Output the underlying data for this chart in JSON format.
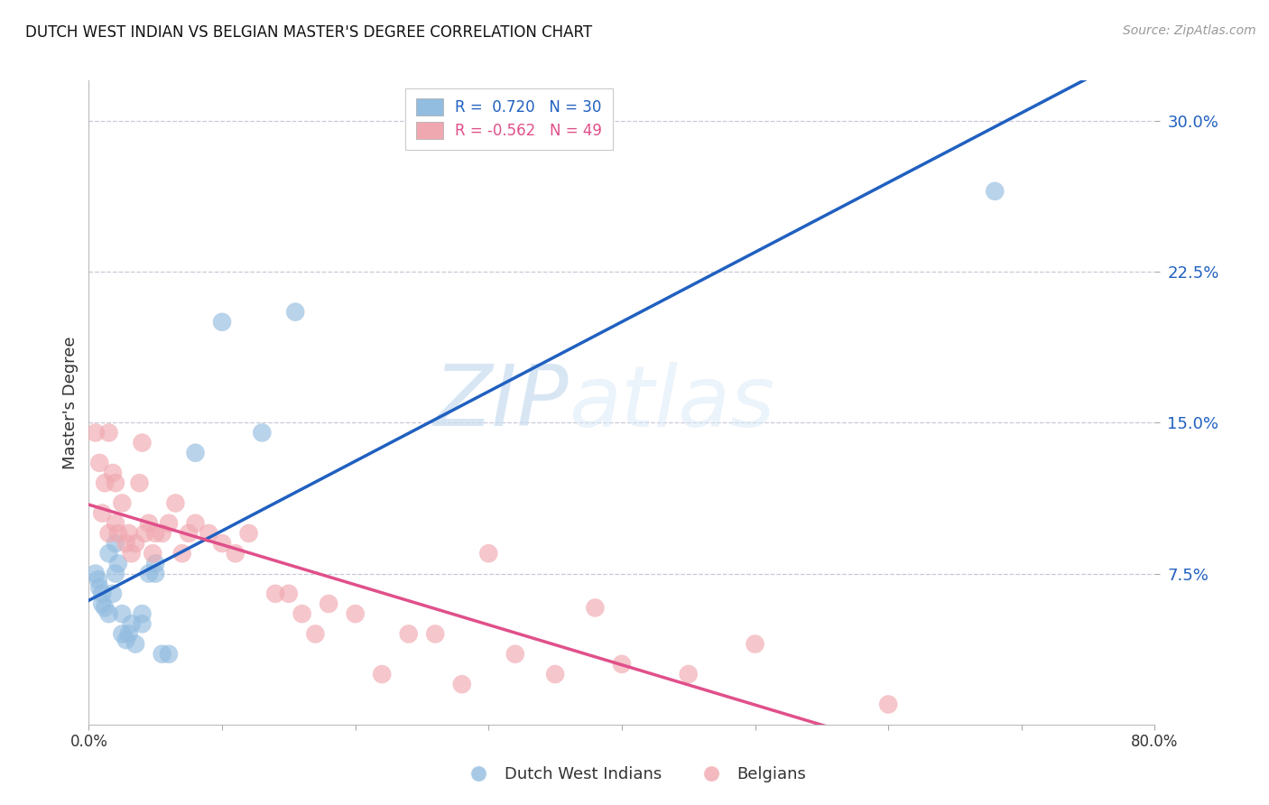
{
  "title": "DUTCH WEST INDIAN VS BELGIAN MASTER'S DEGREE CORRELATION CHART",
  "source": "Source: ZipAtlas.com",
  "ylabel": "Master's Degree",
  "xlim": [
    0.0,
    0.8
  ],
  "ylim": [
    0.0,
    0.32
  ],
  "ytick_vals": [
    0.075,
    0.15,
    0.225,
    0.3
  ],
  "ytick_labels": [
    "7.5%",
    "15.0%",
    "22.5%",
    "30.0%"
  ],
  "blue_color": "#92bce0",
  "pink_color": "#f0a8b0",
  "blue_line_color": "#2060c0",
  "pink_line_color": "#e0508a",
  "background_color": "#ffffff",
  "grid_color": "#c8c8d8",
  "legend_R_blue": "0.720",
  "legend_N_blue": "30",
  "legend_R_pink": "-0.562",
  "legend_N_pink": "49",
  "watermark_zip": "ZIP",
  "watermark_atlas": "atlas",
  "dutch_x": [
    0.005,
    0.007,
    0.008,
    0.01,
    0.01,
    0.012,
    0.015,
    0.015,
    0.018,
    0.02,
    0.02,
    0.022,
    0.025,
    0.025,
    0.028,
    0.03,
    0.032,
    0.035,
    0.04,
    0.04,
    0.045,
    0.05,
    0.05,
    0.055,
    0.06,
    0.08,
    0.1,
    0.13,
    0.155,
    0.68
  ],
  "dutch_y": [
    0.075,
    0.072,
    0.068,
    0.065,
    0.06,
    0.058,
    0.055,
    0.085,
    0.065,
    0.075,
    0.09,
    0.08,
    0.055,
    0.045,
    0.042,
    0.045,
    0.05,
    0.04,
    0.055,
    0.05,
    0.075,
    0.08,
    0.075,
    0.035,
    0.035,
    0.135,
    0.2,
    0.145,
    0.205,
    0.265
  ],
  "belgian_x": [
    0.005,
    0.008,
    0.01,
    0.012,
    0.015,
    0.015,
    0.018,
    0.02,
    0.02,
    0.022,
    0.025,
    0.028,
    0.03,
    0.032,
    0.035,
    0.038,
    0.04,
    0.042,
    0.045,
    0.048,
    0.05,
    0.055,
    0.06,
    0.065,
    0.07,
    0.075,
    0.08,
    0.09,
    0.1,
    0.11,
    0.12,
    0.14,
    0.15,
    0.16,
    0.17,
    0.18,
    0.2,
    0.22,
    0.24,
    0.26,
    0.28,
    0.3,
    0.32,
    0.35,
    0.38,
    0.4,
    0.45,
    0.5,
    0.6
  ],
  "belgian_y": [
    0.145,
    0.13,
    0.105,
    0.12,
    0.145,
    0.095,
    0.125,
    0.12,
    0.1,
    0.095,
    0.11,
    0.09,
    0.095,
    0.085,
    0.09,
    0.12,
    0.14,
    0.095,
    0.1,
    0.085,
    0.095,
    0.095,
    0.1,
    0.11,
    0.085,
    0.095,
    0.1,
    0.095,
    0.09,
    0.085,
    0.095,
    0.065,
    0.065,
    0.055,
    0.045,
    0.06,
    0.055,
    0.025,
    0.045,
    0.045,
    0.02,
    0.085,
    0.035,
    0.025,
    0.058,
    0.03,
    0.025,
    0.04,
    0.01
  ]
}
